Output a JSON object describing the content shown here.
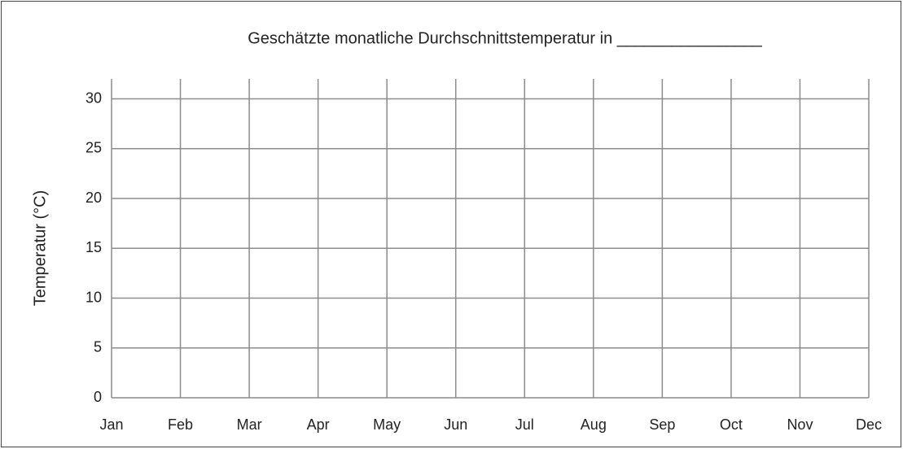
{
  "chart_data": {
    "type": "line",
    "title": "Geschätzte monatliche Durchschnittstemperatur in ________________",
    "ylabel": "Temperatur  (°C)",
    "categories": [
      "Jan",
      "Feb",
      "Mar",
      "Apr",
      "May",
      "Jun",
      "Jul",
      "Aug",
      "Sep",
      "Oct",
      "Nov",
      "Dec"
    ],
    "ylim": [
      0,
      32
    ],
    "yticks": [
      0,
      5,
      10,
      15,
      20,
      25,
      30
    ],
    "grid": true
  }
}
